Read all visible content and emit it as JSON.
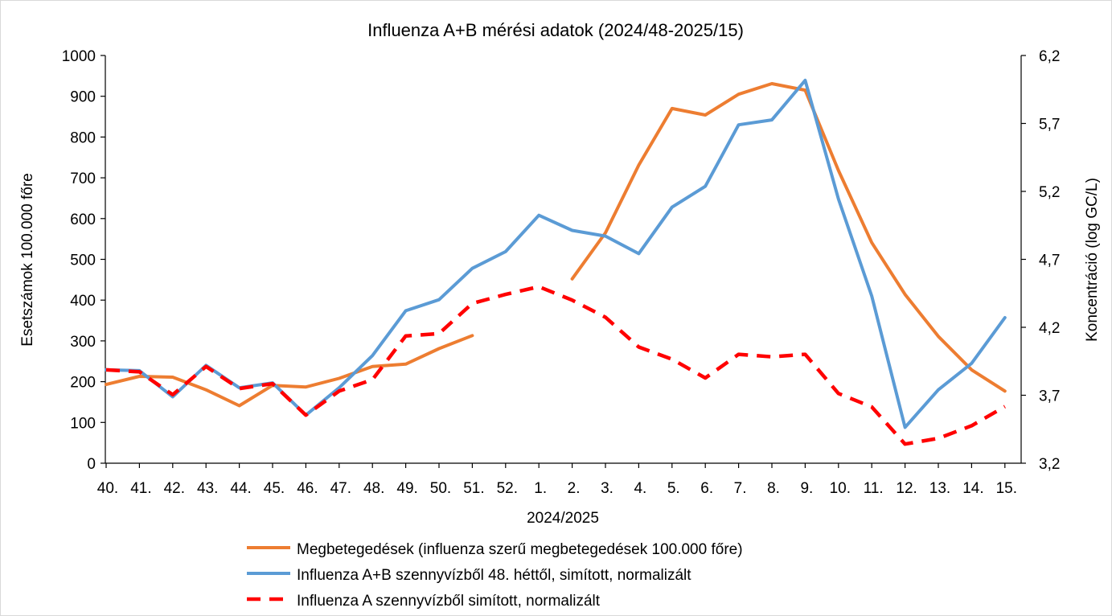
{
  "chart_data": {
    "type": "line",
    "title": "Influenza A+B mérési adatok (2024/48-2025/15)",
    "xlabel": "2024/2025",
    "ylabel": "Esetszámok 100.000 főre",
    "y2label": "Koncentráció (log GC/L)",
    "ylim": [
      0,
      1000
    ],
    "yticks": [
      "0",
      "100",
      "200",
      "300",
      "400",
      "500",
      "600",
      "700",
      "800",
      "900",
      "1000"
    ],
    "y2lim": [
      3.2,
      6.2
    ],
    "y2ticks": [
      "3,2",
      "3,7",
      "4,2",
      "4,7",
      "5,2",
      "5,7",
      "6,2"
    ],
    "categories": [
      "40.",
      "41.",
      "42.",
      "43.",
      "44.",
      "45.",
      "46.",
      "47.",
      "48.",
      "49.",
      "50.",
      "51.",
      "52.",
      "1.",
      "2.",
      "3.",
      "4.",
      "5.",
      "6.",
      "7.",
      "8.",
      "9.",
      "10.",
      "11.",
      "12.",
      "13.",
      "14.",
      "15."
    ],
    "grid": false,
    "legend_position": "bottom",
    "series": [
      {
        "name": "Megbetegedések (influenza szerű megbetegedések 100.000 főre)",
        "axis": "left",
        "color": "#ED7D31",
        "style": "solid",
        "values": [
          193,
          213,
          211,
          180,
          141,
          191,
          187,
          208,
          237,
          243,
          281,
          313,
          null,
          null,
          452,
          565,
          731,
          870,
          854,
          905,
          931,
          915,
          718,
          541,
          414,
          311,
          229,
          177
        ]
      },
      {
        "name": "Influenza A+B szennyvízből 48. héttől, simított, normalizált",
        "axis": "left",
        "color": "#5B9BD5",
        "style": "solid",
        "values": [
          229,
          227,
          163,
          240,
          185,
          197,
          118,
          185,
          264,
          374,
          401,
          478,
          519,
          608,
          571,
          557,
          514,
          628,
          679,
          830,
          842,
          939,
          648,
          410,
          88,
          180,
          245,
          357
        ]
      },
      {
        "name": "Influenza A szennyvízből simított, normalizált",
        "axis": "left",
        "color": "#FF0000",
        "style": "dashed",
        "values": [
          229,
          224,
          168,
          237,
          183,
          195,
          118,
          177,
          205,
          312,
          318,
          392,
          414,
          433,
          400,
          358,
          285,
          255,
          209,
          267,
          261,
          267,
          171,
          138,
          47,
          61,
          92,
          139
        ]
      }
    ]
  }
}
